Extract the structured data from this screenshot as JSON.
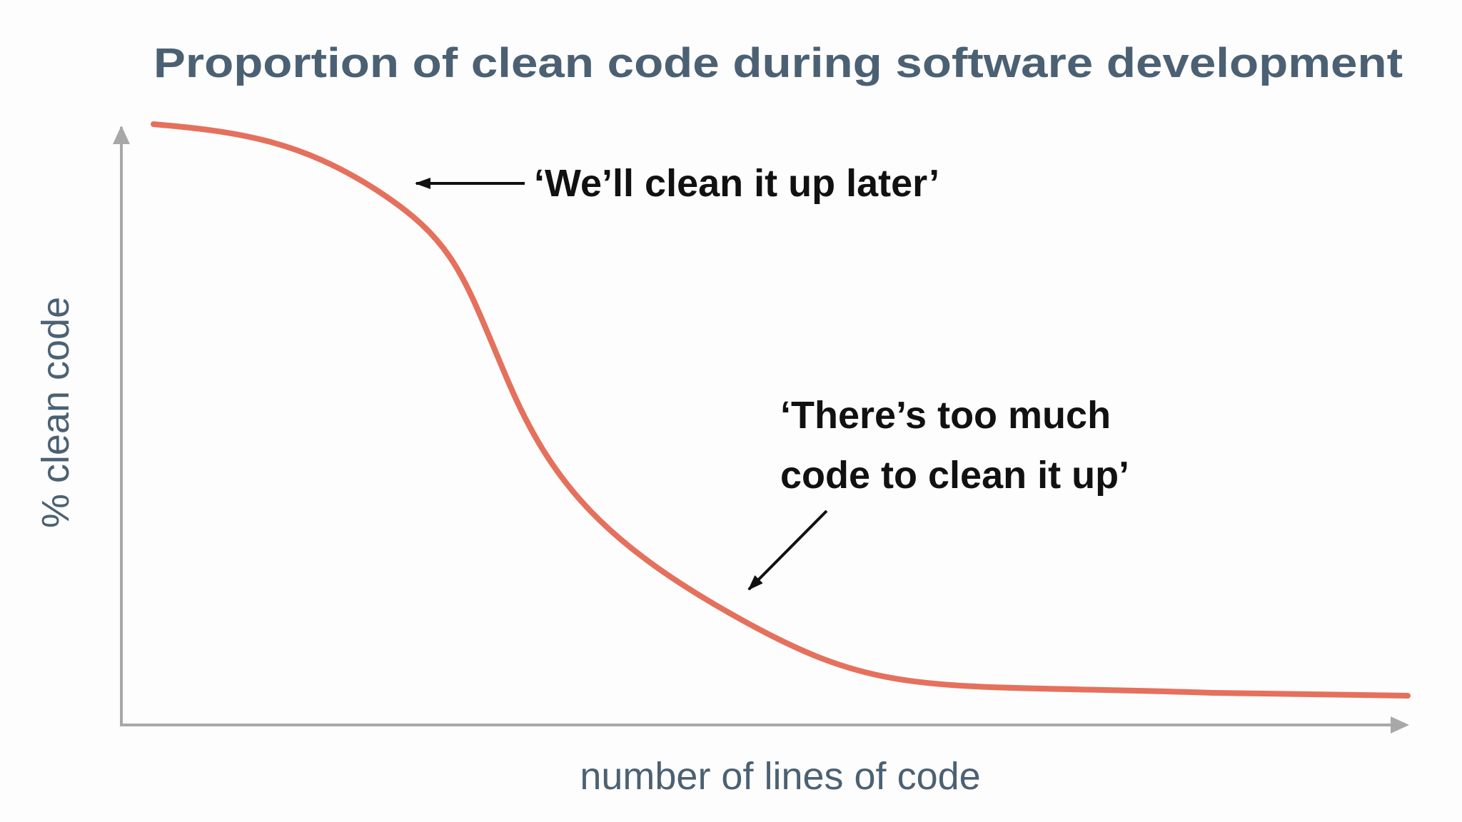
{
  "title": "Proportion of clean code during software development",
  "y_axis_label": "% clean code",
  "x_axis_label": "number of lines of code",
  "annotations": [
    {
      "lines": [
        "‘We’ll clean it up later’"
      ]
    },
    {
      "lines": [
        "‘There’s too much",
        "code to clean it up’"
      ]
    }
  ]
}
